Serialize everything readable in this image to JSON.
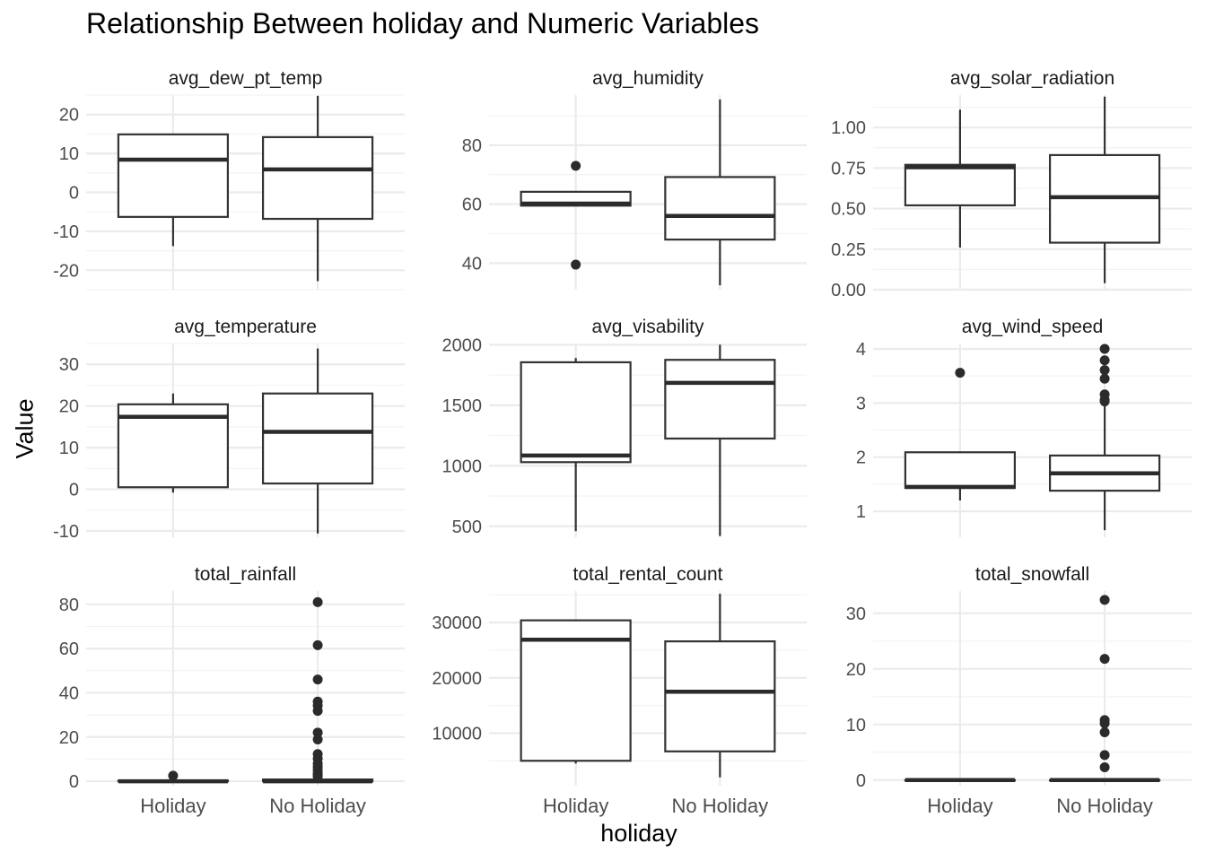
{
  "chart_data": {
    "type": "boxplot",
    "title": "Relationship Between holiday and Numeric Variables",
    "xlabel": "holiday",
    "ylabel": "Value",
    "categories": [
      "Holiday",
      "No Holiday"
    ],
    "grid": true,
    "colors": {
      "box_stroke": "#333333",
      "median": "#2b2b2b",
      "outlier": "#2b2b2b",
      "grid_major": "#ebebeb",
      "grid_minor": "#f3f3f3",
      "tick_label": "#4d4d4d"
    },
    "panels": [
      {
        "name": "avg_dew_pt_temp",
        "ylim": [
          -25,
          25
        ],
        "y_ticks": [
          -20,
          -10,
          0,
          10,
          20
        ],
        "y_tick_labels": [
          "-20",
          "-10",
          "0",
          "10",
          "20"
        ],
        "boxes": [
          {
            "category": "Holiday",
            "min": -13.8,
            "q1": -6.3,
            "median": 8.4,
            "q3": 14.9,
            "max": 14.9,
            "outliers": []
          },
          {
            "category": "No Holiday",
            "min": -22.8,
            "q1": -6.8,
            "median": 5.9,
            "q3": 14.2,
            "max": 24.8,
            "outliers": []
          }
        ]
      },
      {
        "name": "avg_humidity",
        "ylim": [
          31,
          97
        ],
        "y_ticks": [
          40,
          60,
          80
        ],
        "y_tick_labels": [
          "40",
          "60",
          "80"
        ],
        "boxes": [
          {
            "category": "Holiday",
            "min": 59.5,
            "q1": 59.5,
            "median": 60.2,
            "q3": 64.2,
            "max": 64.2,
            "outliers": [
              39.5,
              73.0
            ]
          },
          {
            "category": "No Holiday",
            "min": 32.5,
            "q1": 48.0,
            "median": 56.0,
            "q3": 69.2,
            "max": 95.5,
            "outliers": []
          }
        ]
      },
      {
        "name": "avg_solar_radiation",
        "ylim": [
          0,
          1.2
        ],
        "y_ticks": [
          0,
          0.25,
          0.5,
          0.75,
          1.0
        ],
        "y_tick_labels": [
          "0.00",
          "0.25",
          "0.50",
          "0.75",
          "1.00"
        ],
        "boxes": [
          {
            "category": "Holiday",
            "min": 0.26,
            "q1": 0.52,
            "median": 0.755,
            "q3": 0.77,
            "max": 1.11,
            "outliers": []
          },
          {
            "category": "No Holiday",
            "min": 0.04,
            "q1": 0.29,
            "median": 0.57,
            "q3": 0.83,
            "max": 1.19,
            "outliers": []
          }
        ]
      },
      {
        "name": "avg_temperature",
        "ylim": [
          -11.5,
          35
        ],
        "y_ticks": [
          -10,
          0,
          10,
          20,
          30
        ],
        "y_tick_labels": [
          "-10",
          "0",
          "10",
          "20",
          "30"
        ],
        "boxes": [
          {
            "category": "Holiday",
            "min": -0.8,
            "q1": 0.5,
            "median": 17.4,
            "q3": 20.4,
            "max": 23.0,
            "outliers": []
          },
          {
            "category": "No Holiday",
            "min": -10.6,
            "q1": 1.4,
            "median": 13.8,
            "q3": 23.0,
            "max": 33.8,
            "outliers": []
          }
        ]
      },
      {
        "name": "avg_visability",
        "ylim": [
          410,
          2010
        ],
        "y_ticks": [
          500,
          1000,
          1500,
          2000
        ],
        "y_tick_labels": [
          "500",
          "1000",
          "1500",
          "2000"
        ],
        "boxes": [
          {
            "category": "Holiday",
            "min": 460,
            "q1": 1030,
            "median": 1085,
            "q3": 1855,
            "max": 1890,
            "outliers": []
          },
          {
            "category": "No Holiday",
            "min": 420,
            "q1": 1225,
            "median": 1685,
            "q3": 1875,
            "max": 2000,
            "outliers": []
          }
        ]
      },
      {
        "name": "avg_wind_speed",
        "ylim": [
          0.52,
          4.1
        ],
        "y_ticks": [
          1,
          2,
          3,
          4
        ],
        "y_tick_labels": [
          "1",
          "2",
          "3",
          "4"
        ],
        "boxes": [
          {
            "category": "Holiday",
            "min": 1.2,
            "q1": 1.43,
            "median": 1.45,
            "q3": 2.09,
            "max": 2.09,
            "outliers": [
              3.56
            ]
          },
          {
            "category": "No Holiday",
            "min": 0.65,
            "q1": 1.38,
            "median": 1.7,
            "q3": 2.03,
            "max": 2.99,
            "outliers": [
              3.03,
              3.06,
              3.16,
              3.45,
              3.61,
              3.79,
              4.0
            ]
          }
        ]
      },
      {
        "name": "total_rainfall",
        "ylim": [
          -2,
          86
        ],
        "y_ticks": [
          0,
          20,
          40,
          60,
          80
        ],
        "y_tick_labels": [
          "0",
          "20",
          "40",
          "60",
          "80"
        ],
        "boxes": [
          {
            "category": "Holiday",
            "min": 0,
            "q1": 0,
            "median": 0,
            "q3": 0.3,
            "max": 0.3,
            "outliers": [
              2.5
            ]
          },
          {
            "category": "No Holiday",
            "min": 0,
            "q1": 0,
            "median": 0,
            "q3": 0.8,
            "max": 1.6,
            "outliers": [
              2.1,
              2.9,
              3.7,
              5.2,
              6.5,
              8.0,
              10.2,
              12.3,
              18.9,
              22.0,
              31.8,
              34.2,
              36.0,
              46.0,
              61.5,
              81.0
            ]
          }
        ]
      },
      {
        "name": "total_rental_count",
        "ylim": [
          500,
          35700
        ],
        "y_ticks": [
          10000,
          20000,
          30000
        ],
        "y_tick_labels": [
          "10000",
          "20000",
          "30000"
        ],
        "boxes": [
          {
            "category": "Holiday",
            "min": 4500,
            "q1": 5000,
            "median": 26900,
            "q3": 30400,
            "max": 30400,
            "outliers": []
          },
          {
            "category": "No Holiday",
            "min": 2000,
            "q1": 6700,
            "median": 17500,
            "q3": 26600,
            "max": 35200,
            "outliers": []
          }
        ]
      },
      {
        "name": "total_snowfall",
        "ylim": [
          -1,
          34
        ],
        "y_ticks": [
          0,
          10,
          20,
          30
        ],
        "y_tick_labels": [
          "0",
          "10",
          "20",
          "30"
        ],
        "boxes": [
          {
            "category": "Holiday",
            "min": 0,
            "q1": 0,
            "median": 0,
            "q3": 0,
            "max": 0,
            "outliers": []
          },
          {
            "category": "No Holiday",
            "min": 0,
            "q1": 0,
            "median": 0,
            "q3": 0,
            "max": 0,
            "outliers": [
              2.3,
              4.5,
              8.6,
              10.2,
              10.8,
              21.8,
              32.4
            ]
          }
        ]
      }
    ]
  }
}
